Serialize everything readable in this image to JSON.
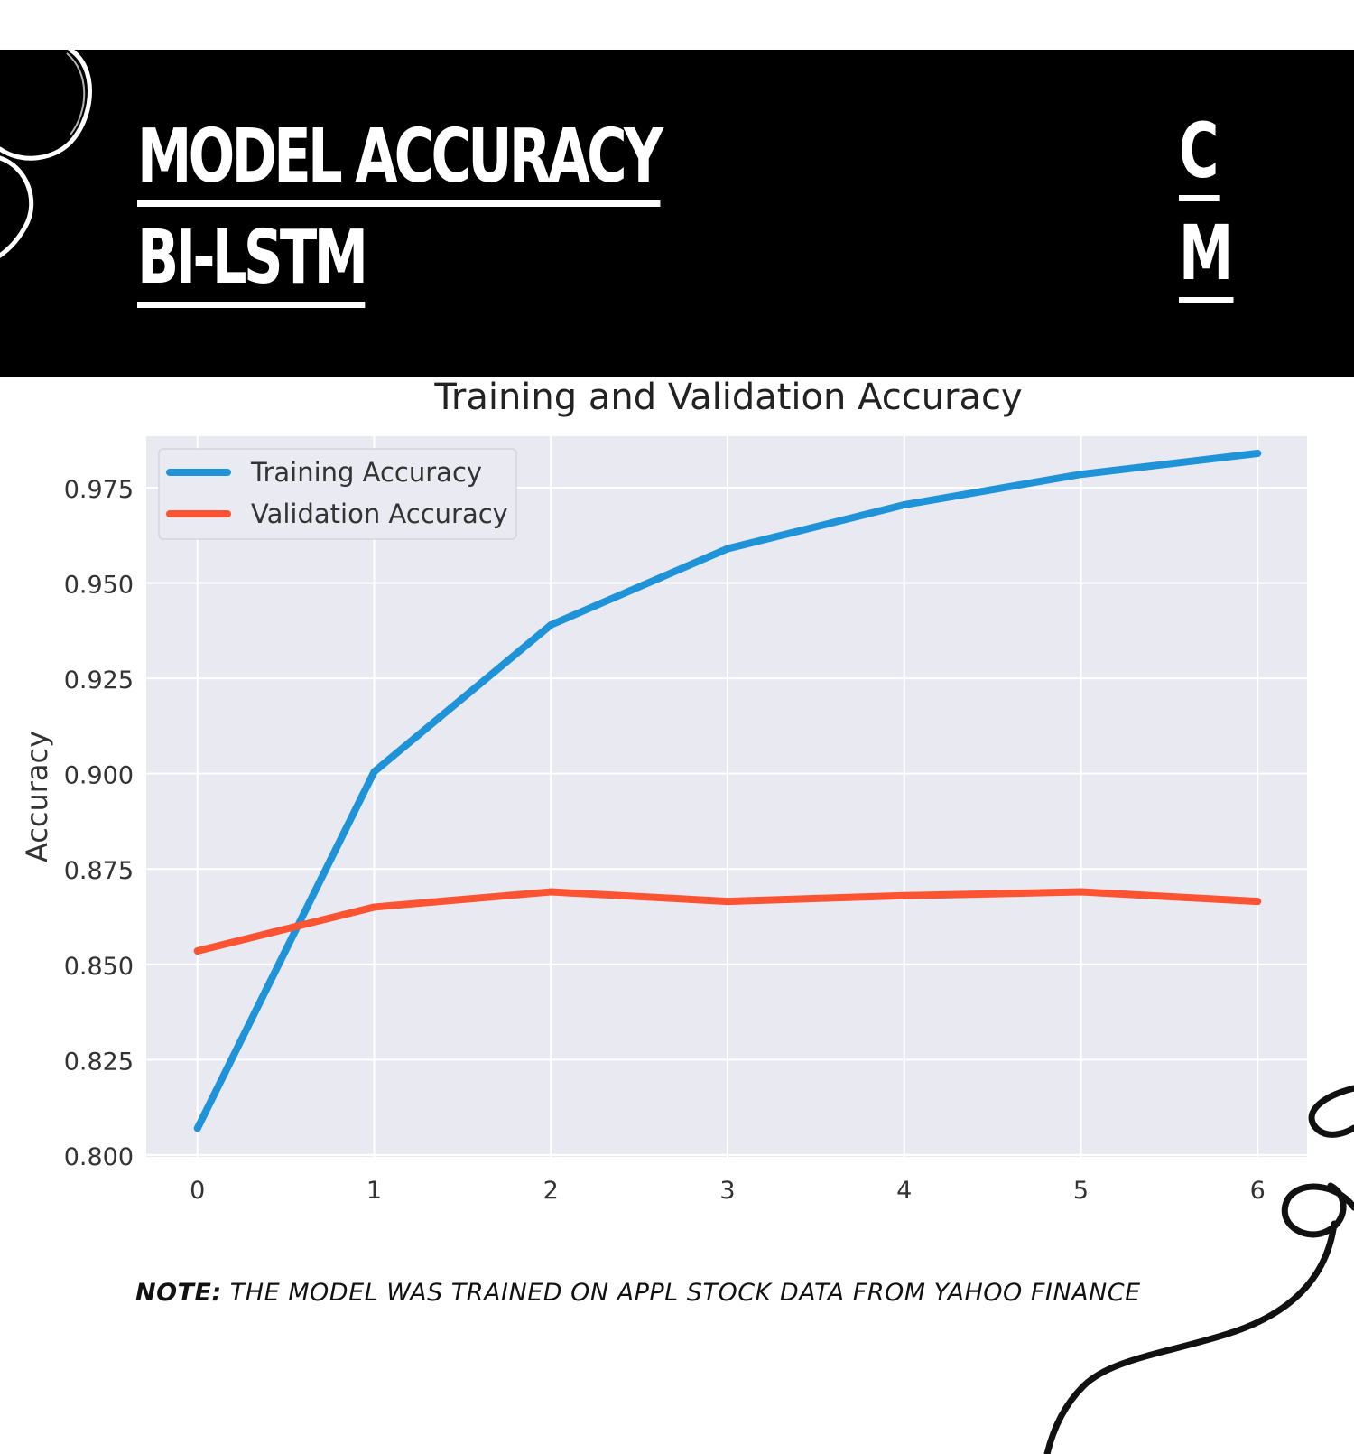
{
  "header": {
    "title_line_1": "MODEL ACCURACY",
    "title_line_2": "BI-LSTM",
    "monogram_top": "C",
    "monogram_bottom": "M",
    "background": "#000000",
    "text_color": "#ffffff"
  },
  "chart_data": {
    "type": "line",
    "title": "Training and Validation Accuracy",
    "xlabel": "",
    "ylabel": "Accuracy",
    "x": [
      0,
      1,
      2,
      3,
      4,
      5,
      6
    ],
    "xlim": [
      -0.29,
      6.28
    ],
    "ylim": [
      0.7995,
      0.9885
    ],
    "yticks": [
      "0.800",
      "0.825",
      "0.850",
      "0.875",
      "0.900",
      "0.925",
      "0.950",
      "0.975"
    ],
    "xticks": [
      "0",
      "1",
      "2",
      "3",
      "4",
      "5",
      "6"
    ],
    "series": [
      {
        "name": "Training Accuracy",
        "color": "#1f93d8",
        "values": [
          0.807,
          0.9005,
          0.939,
          0.959,
          0.9705,
          0.9785,
          0.984
        ]
      },
      {
        "name": "Validation Accuracy",
        "color": "#fc5433",
        "values": [
          0.8535,
          0.865,
          0.869,
          0.8665,
          0.868,
          0.869,
          0.8665
        ]
      }
    ],
    "grid": true,
    "plot_background": "#e9e9f2",
    "legend_position": "top-left"
  },
  "note": {
    "label": "NOTE:",
    "text": " THE MODEL WAS TRAINED ON APPL STOCK DATA FROM YAHOO FINANCE"
  }
}
